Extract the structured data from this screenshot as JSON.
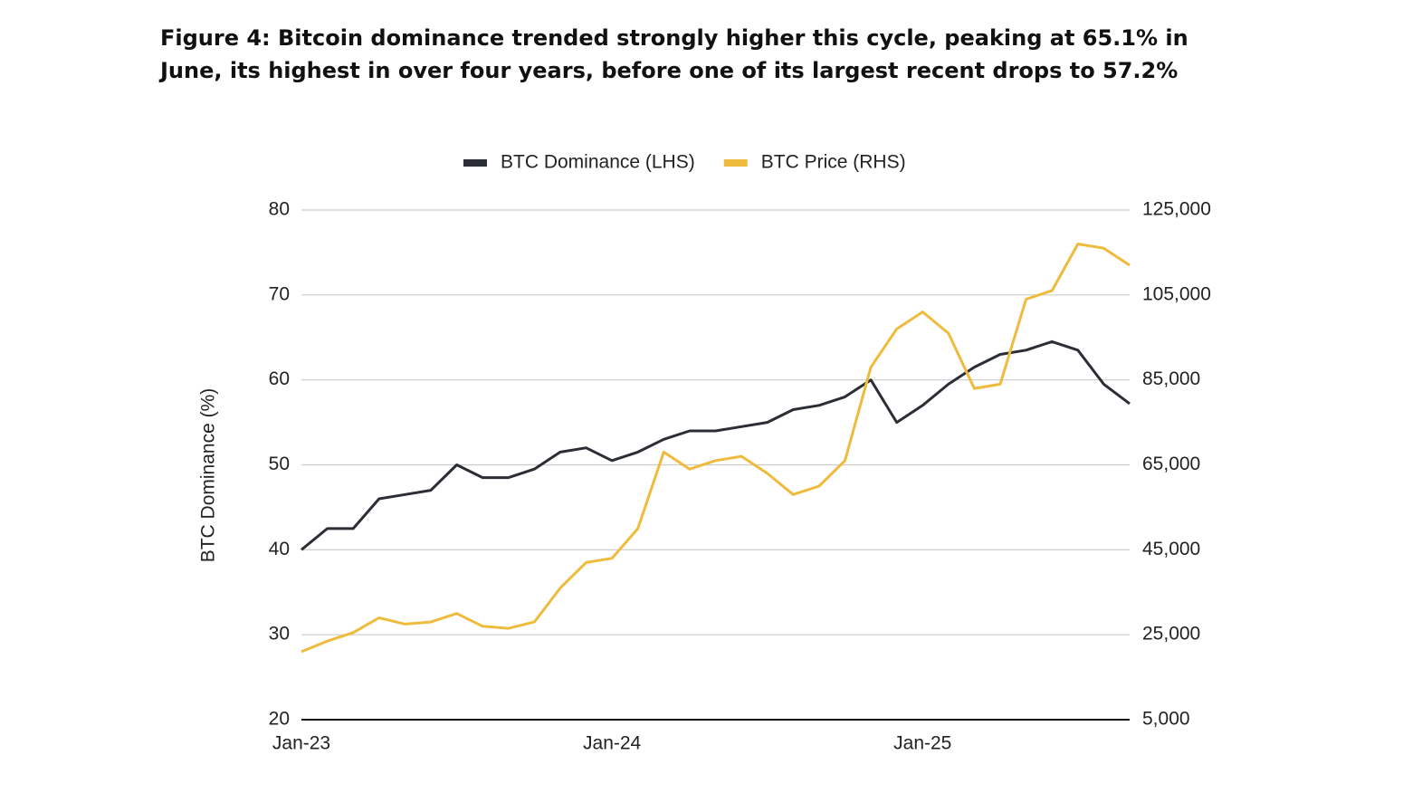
{
  "chart_data": {
    "type": "line",
    "title": "Figure 4:  Bitcoin dominance trended strongly higher this cycle, peaking at 65.1% in June, its highest in over four years, before one of its largest recent drops to 57.2%",
    "y_label": "BTC Dominance (%)",
    "categories": [
      "Jan-23",
      null,
      null,
      null,
      null,
      null,
      null,
      null,
      null,
      null,
      null,
      null,
      "Jan-24",
      null,
      null,
      null,
      null,
      null,
      null,
      null,
      null,
      null,
      null,
      null,
      "Jan-25",
      null,
      null,
      null,
      null,
      null,
      null,
      null,
      null
    ],
    "series": [
      {
        "name": "BTC Dominance (LHS)",
        "color": "#2b2e34",
        "axis": "y",
        "values": [
          40,
          42.5,
          42.5,
          46,
          46.5,
          47,
          50,
          48.5,
          48.5,
          49.5,
          51.5,
          52,
          50.5,
          51.5,
          53,
          54,
          54,
          54.5,
          55,
          56.5,
          57,
          58,
          60,
          55,
          57,
          59.5,
          61.5,
          63,
          63.5,
          64.5,
          63.5,
          59.5,
          57.2
        ]
      },
      {
        "name": "BTC Price (RHS)",
        "color": "#efbb3c",
        "axis": "y2",
        "values": [
          21000,
          23500,
          25500,
          29000,
          27500,
          28000,
          30000,
          27000,
          26500,
          28000,
          36000,
          42000,
          43000,
          50000,
          68000,
          64000,
          66000,
          67000,
          63000,
          58000,
          60000,
          66000,
          88000,
          97000,
          101000,
          96000,
          83000,
          84000,
          104000,
          106000,
          117000,
          116000,
          112000
        ]
      }
    ],
    "ylim": [
      20,
      80
    ],
    "yticks": [
      20,
      30,
      40,
      50,
      60,
      70,
      80
    ],
    "y2lim": [
      5000,
      125000
    ],
    "y2ticks": [
      {
        "value": 5000,
        "label": "5,000"
      },
      {
        "value": 25000,
        "label": "25,000"
      },
      {
        "value": 45000,
        "label": "45,000"
      },
      {
        "value": 65000,
        "label": "65,000"
      },
      {
        "value": 85000,
        "label": "85,000"
      },
      {
        "value": 105000,
        "label": "105,000"
      },
      {
        "value": 125000,
        "label": "125,000"
      }
    ],
    "grid": true,
    "legend": "top"
  }
}
